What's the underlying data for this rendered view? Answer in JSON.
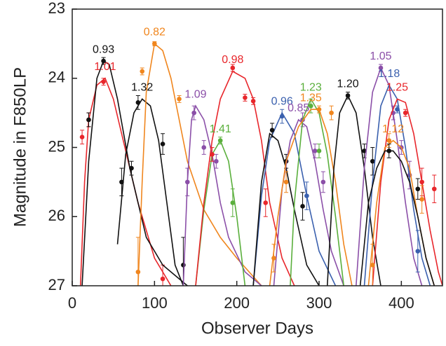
{
  "chart_data": {
    "type": "line",
    "x_label": "Observer Days",
    "y_label": "Magnitude in F850LP",
    "xlim": [
      0,
      450
    ],
    "ylim": [
      23,
      27
    ],
    "y_inverted": true,
    "xticks": [
      0,
      100,
      200,
      300,
      400
    ],
    "yticks": [
      23,
      24,
      25,
      26,
      27
    ],
    "series": [
      {
        "name": "1.01",
        "color": "#e8262b",
        "x": [
          10,
          15,
          20,
          30,
          40,
          50,
          60,
          80,
          100,
          120
        ],
        "y": [
          27,
          25.5,
          24.6,
          24.1,
          24.0,
          24.3,
          24.8,
          25.8,
          26.6,
          27
        ],
        "points": {
          "x": [
            12,
            20,
            38,
            110
          ],
          "y": [
            24.85,
            24.6,
            24.05,
            26.9
          ],
          "err": [
            0.1,
            0.1,
            0.05,
            0.2
          ]
        }
      },
      {
        "name": "0.93",
        "color": "#111111",
        "x": [
          12,
          20,
          30,
          38,
          45,
          55,
          70,
          90,
          110,
          130,
          140
        ],
        "y": [
          27,
          25.2,
          24.0,
          23.75,
          23.8,
          24.3,
          25.3,
          26.3,
          26.7,
          26.9,
          27
        ],
        "points": {
          "x": [
            20,
            38
          ],
          "y": [
            24.6,
            23.75
          ],
          "err": [
            0.1,
            0.05
          ]
        }
      },
      {
        "name": "1.32",
        "color": "#111111",
        "x": [
          55,
          65,
          75,
          85,
          95,
          105,
          115,
          125,
          135
        ],
        "y": [
          26.4,
          25.1,
          24.5,
          24.3,
          24.4,
          24.9,
          25.8,
          26.7,
          27
        ],
        "points": {
          "x": [
            60,
            72,
            80,
            110,
            135
          ],
          "y": [
            25.5,
            25.3,
            24.35,
            24.95,
            26.7
          ],
          "err": [
            0.2,
            0.1,
            0.1,
            0.15,
            0.4
          ]
        }
      },
      {
        "name": "0.82",
        "color": "#f0861e",
        "x": [
          80,
          85,
          90,
          100,
          110,
          120,
          140,
          160,
          180,
          200,
          230
        ],
        "y": [
          27,
          25.5,
          24.2,
          23.5,
          23.6,
          24.0,
          25.2,
          25.9,
          26.3,
          26.6,
          27
        ],
        "points": {
          "x": [
            80,
            85,
            100,
            130
          ],
          "y": [
            26.8,
            23.9,
            23.5,
            24.3
          ],
          "err": [
            0.5,
            0.05,
            0.03,
            0.05
          ]
        }
      },
      {
        "name": "1.09",
        "color": "#8b4fa8",
        "x": [
          135,
          140,
          145,
          150,
          160,
          170,
          180,
          190,
          210,
          230
        ],
        "y": [
          27,
          25.5,
          24.6,
          24.4,
          24.6,
          25.1,
          25.8,
          26.3,
          26.8,
          27
        ],
        "points": {
          "x": [
            140,
            148,
            160,
            175
          ],
          "y": [
            25.5,
            24.5,
            25.0,
            25.2
          ],
          "err": [
            0.2,
            0.1,
            0.1,
            0.1
          ]
        }
      },
      {
        "name": "1.41",
        "color": "#5aaf3c",
        "x": [
          150,
          160,
          170,
          180,
          190,
          200,
          210
        ],
        "y": [
          27,
          25.9,
          25.1,
          24.9,
          25.2,
          26.0,
          27
        ],
        "points": {
          "x": [
            180,
            195
          ],
          "y": [
            24.9,
            25.8
          ],
          "err": [
            0.05,
            0.2
          ]
        }
      },
      {
        "name": "0.98",
        "color": "#e8262b",
        "x": [
          150,
          160,
          170,
          180,
          195,
          210,
          220,
          230,
          240,
          255,
          270
        ],
        "y": [
          27,
          25.8,
          24.9,
          24.3,
          23.9,
          24.0,
          24.3,
          24.9,
          25.8,
          26.6,
          27
        ],
        "points": {
          "x": [
            170,
            195,
            210,
            220,
            235
          ],
          "y": [
            25.1,
            23.85,
            24.28,
            24.33,
            25.8
          ],
          "err": [
            0.1,
            0.05,
            0.05,
            0.05,
            0.2
          ]
        }
      },
      {
        "name": "0.96",
        "color": "#3a60ae",
        "x": [
          220,
          230,
          240,
          255,
          270,
          285,
          300,
          320
        ],
        "y": [
          27,
          25.7,
          24.9,
          24.5,
          24.8,
          25.7,
          26.5,
          27
        ],
        "points": {
          "x": [
            255,
            285
          ],
          "y": [
            24.55,
            25.7
          ],
          "err": [
            0.1,
            0.2
          ]
        }
      },
      {
        "color": "#111111",
        "x": [
          220,
          230,
          240,
          250,
          260,
          270,
          285,
          300
        ],
        "y": [
          27,
          25.5,
          24.8,
          24.9,
          25.3,
          25.9,
          26.7,
          27
        ],
        "points": {
          "x": [
            243,
            260,
            280
          ],
          "y": [
            24.75,
            25.2,
            25.85
          ],
          "err": [
            0.1,
            0.1,
            0.2
          ]
        }
      },
      {
        "name": "0.85",
        "color": "#8b4fa8",
        "x": [
          245,
          255,
          265,
          275,
          285,
          295,
          305,
          315,
          330
        ],
        "y": [
          27,
          25.6,
          24.9,
          24.6,
          24.7,
          25.2,
          25.9,
          26.5,
          27
        ],
        "points": {
          "x": [
            280,
            295,
            305
          ],
          "y": [
            24.6,
            25.05,
            25.5
          ],
          "err": [
            0.1,
            0.1,
            0.15
          ]
        }
      },
      {
        "name": "1.23",
        "color": "#5aaf3c",
        "x": [
          265,
          270,
          280,
          290,
          300,
          310,
          320,
          330
        ],
        "y": [
          27,
          25.8,
          24.6,
          24.3,
          24.5,
          25.1,
          26.0,
          27
        ],
        "points": {
          "x": [
            290,
            300
          ],
          "y": [
            24.4,
            25.05
          ],
          "err": [
            0.1,
            0.1
          ]
        }
      },
      {
        "name": "1.35",
        "color": "#f0861e",
        "x": [
          240,
          250,
          260,
          275,
          290,
          300,
          310,
          320,
          330,
          340
        ],
        "y": [
          27,
          26.0,
          25.2,
          24.7,
          24.45,
          24.45,
          24.8,
          25.5,
          26.4,
          27
        ],
        "points": {
          "x": [
            245,
            260,
            300,
            315
          ],
          "y": [
            26.6,
            25.5,
            24.45,
            24.5
          ],
          "err": [
            0.2,
            0.15,
            0.05,
            0.1
          ]
        }
      },
      {
        "name": "1.20",
        "color": "#111111",
        "x": [
          310,
          318,
          325,
          335,
          345,
          355,
          365,
          375
        ],
        "y": [
          27,
          25.3,
          24.5,
          24.25,
          24.5,
          25.3,
          26.3,
          27
        ],
        "points": {
          "x": [
            335,
            355,
            365
          ],
          "y": [
            24.25,
            25.05,
            25.2
          ],
          "err": [
            0.05,
            0.1,
            0.2
          ]
        }
      },
      {
        "name": "1.05",
        "color": "#8b4fa8",
        "x": [
          345,
          355,
          365,
          375,
          385,
          395,
          405,
          415,
          425
        ],
        "y": [
          27,
          25.3,
          24.2,
          23.85,
          24.1,
          24.9,
          25.8,
          26.6,
          27
        ],
        "points": {
          "x": [
            375,
            390,
            400,
            410
          ],
          "y": [
            23.85,
            24.5,
            25.0,
            25.4
          ],
          "err": [
            0.05,
            0.1,
            0.1,
            0.2
          ]
        }
      },
      {
        "name": "1.18",
        "color": "#3a60ae",
        "x": [
          355,
          365,
          375,
          385,
          395,
          405,
          415,
          425,
          435
        ],
        "y": [
          27,
          25.5,
          24.4,
          24.1,
          24.3,
          25.0,
          25.9,
          26.6,
          27
        ],
        "points": {
          "x": [
            395,
            420
          ],
          "y": [
            24.45,
            26.5
          ],
          "err": [
            0.05,
            0.3
          ]
        }
      },
      {
        "name": "1.25",
        "color": "#e8262b",
        "x": [
          365,
          375,
          385,
          395,
          405,
          415,
          425,
          435,
          445,
          450
        ],
        "y": [
          27,
          25.5,
          24.6,
          24.3,
          24.35,
          24.8,
          25.5,
          26.2,
          26.8,
          27
        ],
        "points": {
          "x": [
            405,
            425,
            440
          ],
          "y": [
            24.5,
            25.5,
            25.6
          ],
          "err": [
            0.05,
            0.2,
            0.2
          ]
        }
      },
      {
        "name": "1.12",
        "color": "#f0861e",
        "x": [
          360,
          370,
          380,
          390,
          400,
          410,
          420,
          430,
          440
        ],
        "y": [
          27,
          25.8,
          25.0,
          24.9,
          25.0,
          25.3,
          26.0,
          26.6,
          27
        ],
        "points": {
          "x": [
            365,
            385,
            425
          ],
          "y": [
            26.7,
            24.9,
            25.75
          ],
          "err": [
            0.3,
            0.1,
            0.2
          ]
        }
      },
      {
        "color": "#111111",
        "x": [
          350,
          360,
          370,
          380,
          390,
          400,
          410,
          420,
          430,
          440
        ],
        "y": [
          27,
          25.8,
          25.3,
          25.05,
          25.05,
          25.2,
          25.5,
          26.0,
          26.6,
          27
        ],
        "points": {
          "x": [
            385,
            420
          ],
          "y": [
            25.05,
            25.6
          ],
          "err": [
            0.1,
            0.15
          ]
        }
      }
    ]
  }
}
